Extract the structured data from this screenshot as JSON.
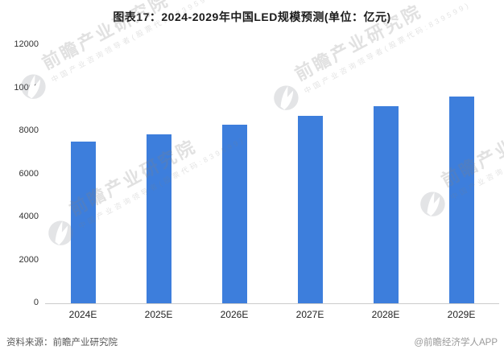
{
  "title": "图表17：2024-2029年中国LED规模预测(单位：亿元)",
  "chart_data": {
    "type": "bar",
    "categories": [
      "2024E",
      "2025E",
      "2026E",
      "2027E",
      "2028E",
      "2029E"
    ],
    "values": [
      7500,
      7850,
      8290,
      8700,
      9150,
      9600
    ],
    "title": "图表17：2024-2029年中国LED规模预测(单位：亿元)",
    "xlabel": "",
    "ylabel": "",
    "unit": "亿元",
    "ylim": [
      0,
      12000
    ],
    "yticks": [
      0,
      2000,
      4000,
      6000,
      8000,
      10000,
      12000
    ],
    "grid": false,
    "legend": "none",
    "bar_color": "#3D7EDC"
  },
  "footer": {
    "source": "资料来源：前瞻产业研究院",
    "credit": "@前瞻经济学人APP"
  },
  "watermark": {
    "big_text": "前瞻产业研究院",
    "small_text": "中国产业咨询领导者(股票代码:839599)",
    "logo": "qianzhan-logo-icon"
  },
  "colors": {
    "bar": "#3D7EDC",
    "axis_line": "#CCCCCC",
    "title_text": "#1A1A1A",
    "tick_text": "#333333",
    "source_text": "#595959",
    "credit_text": "#999999",
    "watermark": "#E4E4E4"
  }
}
